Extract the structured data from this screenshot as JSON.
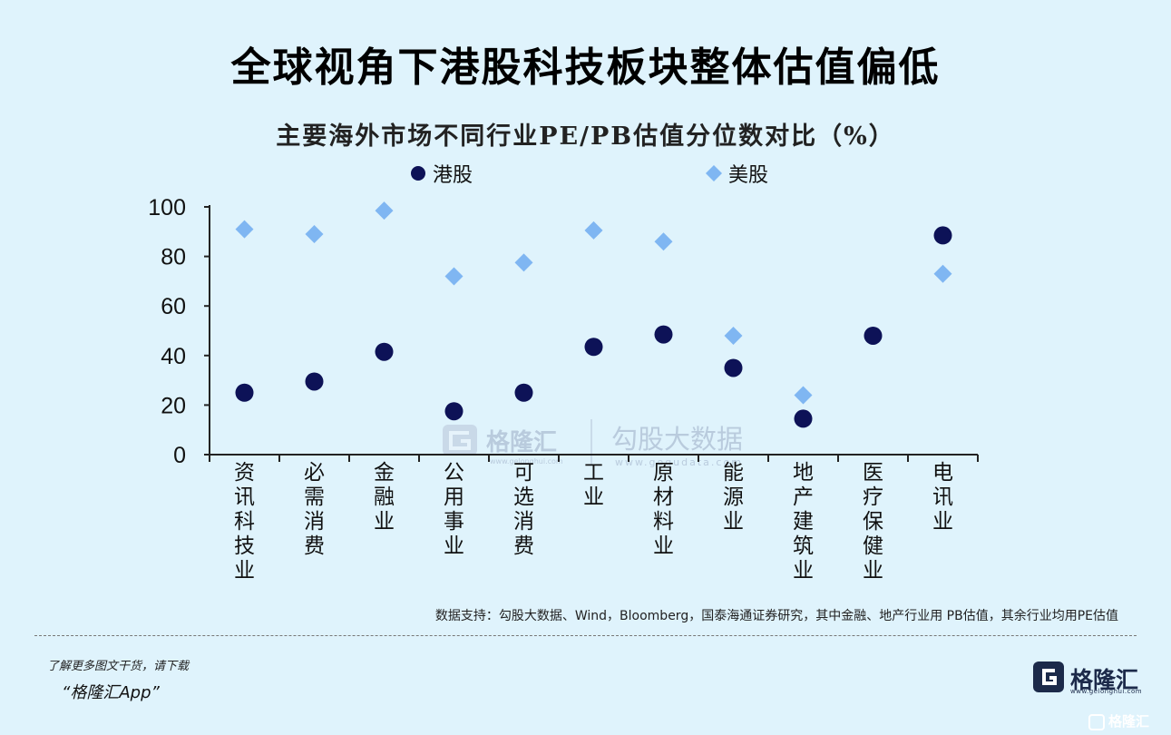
{
  "title": "全球视角下港股科技板块整体估值偏低",
  "source_note": "数据支持：勾股大数据、Wind，Bloomberg，国泰海通证券研究，其中金融、地产行业用 PB估值，其余行业均用PE估值",
  "promo": {
    "line1": "了解更多图文干货，请下载",
    "line2": "“格隆汇App”"
  },
  "brand": {
    "name": "格隆汇",
    "url": "www.gelonghui.com",
    "bottom_watermark": "格隆汇"
  },
  "watermark": {
    "left_name": "格隆汇",
    "left_url": "www.gelonghui.com",
    "right_name": "勾股大数据",
    "right_url": "www.gogudata.com"
  },
  "colors": {
    "hk": "#0d1257",
    "us": "#7fb6f2",
    "background": "#dff3fc"
  },
  "chart_data": {
    "type": "scatter",
    "title": "主要海外市场不同行业PE/PB估值分位数对比（%）",
    "categories": [
      "资讯科技业",
      "必需消费",
      "金融业",
      "公用事业",
      "可选消费",
      "工业",
      "原材料业",
      "能源业",
      "地产建筑业",
      "医疗保健业",
      "电讯业"
    ],
    "ylim": [
      0,
      100
    ],
    "yticks": [
      0,
      20,
      40,
      60,
      80,
      100
    ],
    "legend_position": "top",
    "series": [
      {
        "name": "港股",
        "marker": "circle",
        "values": [
          25,
          29.5,
          41.5,
          17.5,
          25,
          43.5,
          48.5,
          35,
          14.5,
          48,
          88.5
        ]
      },
      {
        "name": "美股",
        "marker": "diamond",
        "values": [
          91,
          89,
          98.5,
          72,
          77.5,
          90.5,
          86,
          48,
          24,
          48,
          73
        ]
      }
    ]
  }
}
